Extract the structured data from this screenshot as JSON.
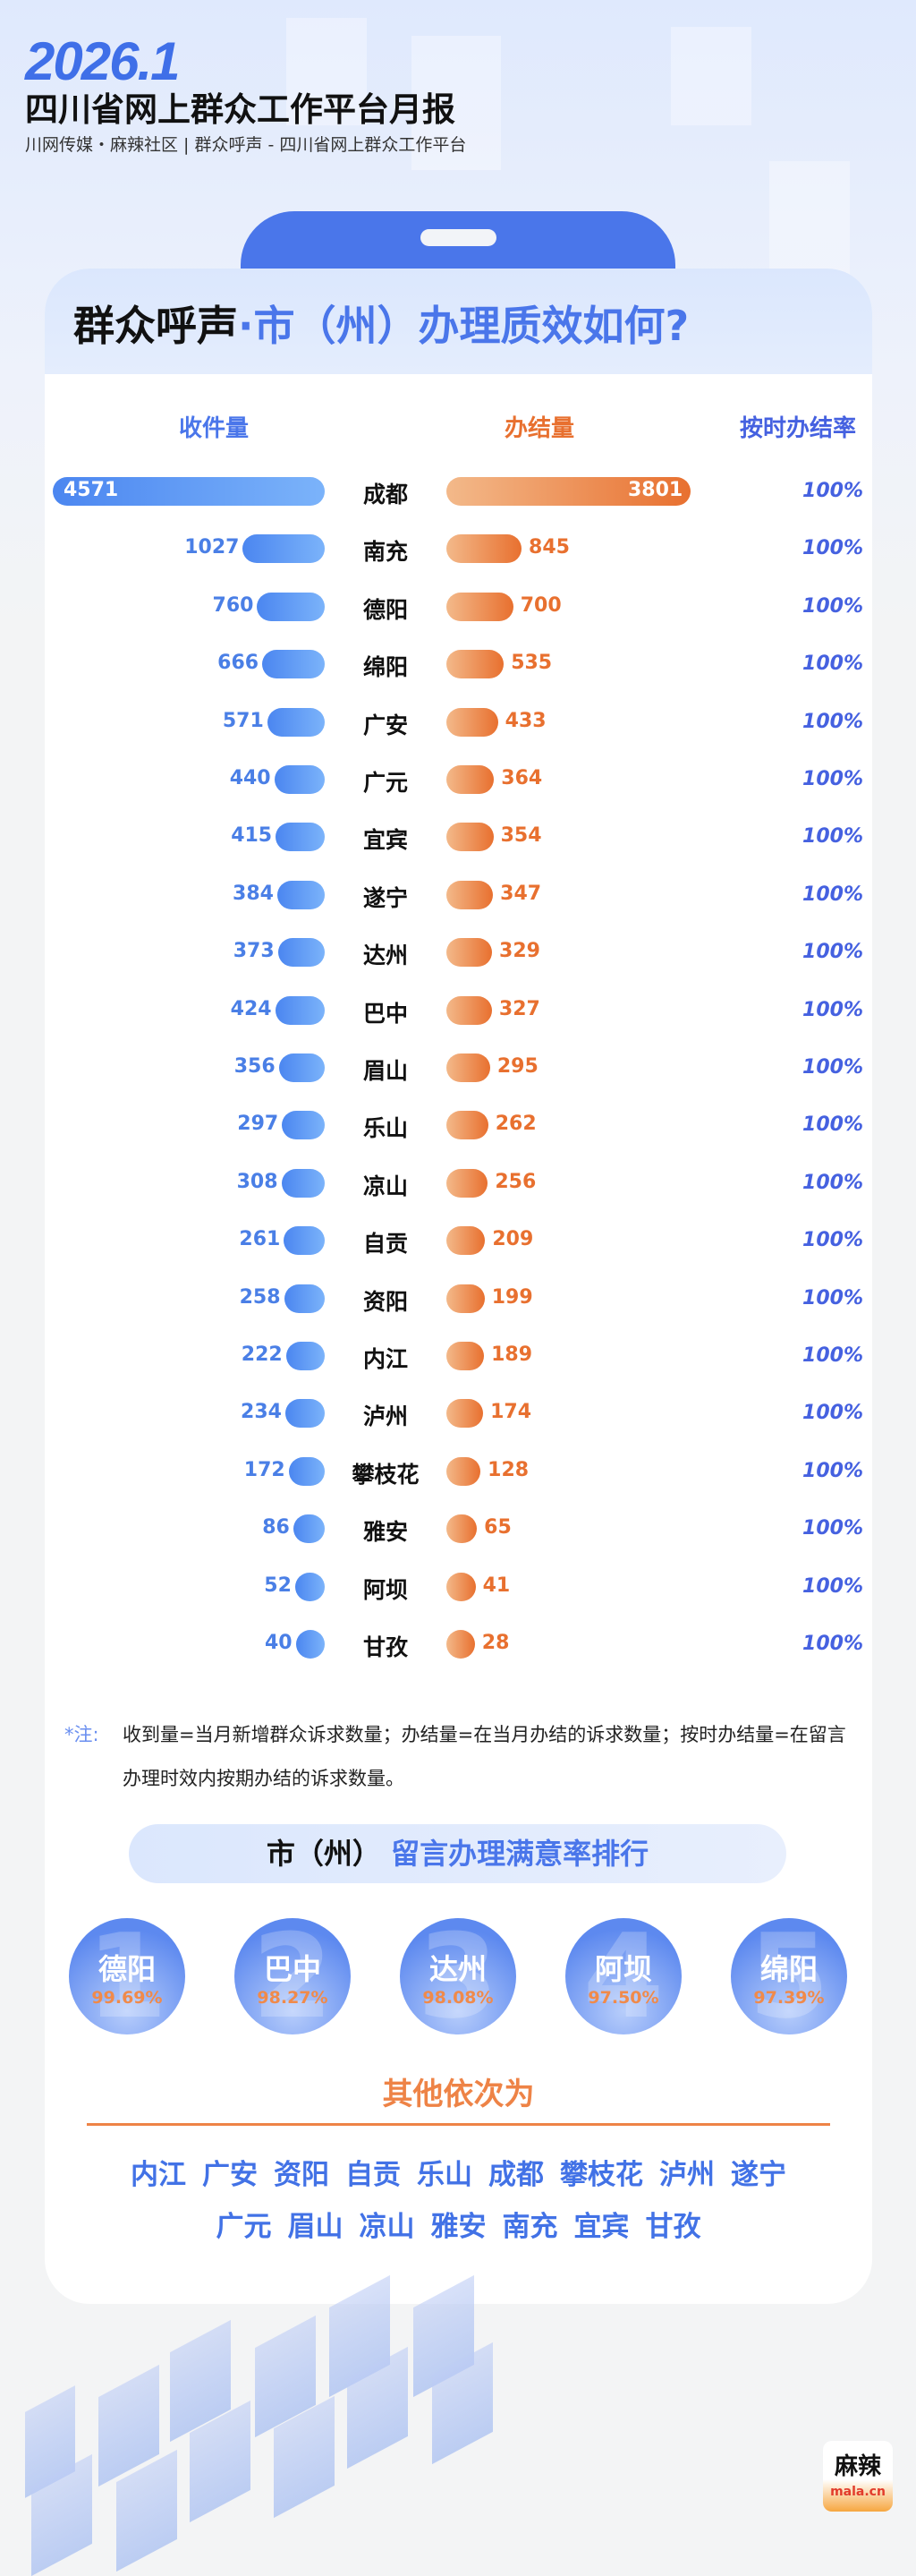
{
  "header": {
    "year": "2026.1",
    "title": "四川省网上群众工作平台月报",
    "subtitle": "川网传媒・麻辣社区 | 群众呼声 - 四川省网上群众工作平台"
  },
  "card": {
    "title_black": "群众呼声",
    "title_blue": "·市（州）办理质效如何?"
  },
  "colors": {
    "received": "#4b86f0",
    "completed": "#e8702f",
    "accent": "#4a76ea"
  },
  "chart_data": {
    "type": "bar",
    "columns": [
      "收件量",
      "办结量",
      "按时办结率"
    ],
    "categories": [
      "成都",
      "南充",
      "德阳",
      "绵阳",
      "广安",
      "广元",
      "宜宾",
      "遂宁",
      "达州",
      "巴中",
      "眉山",
      "乐山",
      "凉山",
      "自贡",
      "资阳",
      "内江",
      "泸州",
      "攀枝花",
      "雅安",
      "阿坝",
      "甘孜"
    ],
    "series": [
      {
        "name": "收件量",
        "values": [
          4571,
          1027,
          760,
          666,
          571,
          440,
          415,
          384,
          373,
          424,
          356,
          297,
          308,
          261,
          258,
          222,
          234,
          172,
          86,
          52,
          40
        ]
      },
      {
        "name": "办结量",
        "values": [
          3801,
          845,
          700,
          535,
          433,
          364,
          354,
          347,
          329,
          327,
          295,
          262,
          256,
          209,
          199,
          189,
          174,
          128,
          65,
          41,
          28
        ]
      }
    ],
    "rates": [
      "100%",
      "100%",
      "100%",
      "100%",
      "100%",
      "100%",
      "100%",
      "100%",
      "100%",
      "100%",
      "100%",
      "100%",
      "100%",
      "100%",
      "100%",
      "100%",
      "100%",
      "100%",
      "100%",
      "100%",
      "100%"
    ]
  },
  "note": {
    "label": "*注:",
    "text": "收到量=当月新增群众诉求数量；办结量=在当月办结的诉求数量；按时办结量=在留言办理时效内按期办结的诉求数量。"
  },
  "ranking": {
    "title_black": "市（州）",
    "title_blue": "留言办理满意率排行",
    "top": [
      {
        "rank": "1",
        "city": "德阳",
        "rate": "99.69%"
      },
      {
        "rank": "2",
        "city": "巴中",
        "rate": "98.27%"
      },
      {
        "rank": "3",
        "city": "达州",
        "rate": "98.08%"
      },
      {
        "rank": "4",
        "city": "阿坝",
        "rate": "97.50%"
      },
      {
        "rank": "5",
        "city": "绵阳",
        "rate": "97.39%"
      }
    ],
    "others_title": "其他依次为",
    "others_row1": [
      "内江",
      "广安",
      "资阳",
      "自贡",
      "乐山",
      "成都",
      "攀枝花",
      "泸州",
      "遂宁"
    ],
    "others_row2": [
      "广元",
      "眉山",
      "凉山",
      "雅安",
      "南充",
      "宜宾",
      "甘孜"
    ]
  },
  "logo": {
    "cn": "麻辣",
    "en": "mala.cn"
  }
}
